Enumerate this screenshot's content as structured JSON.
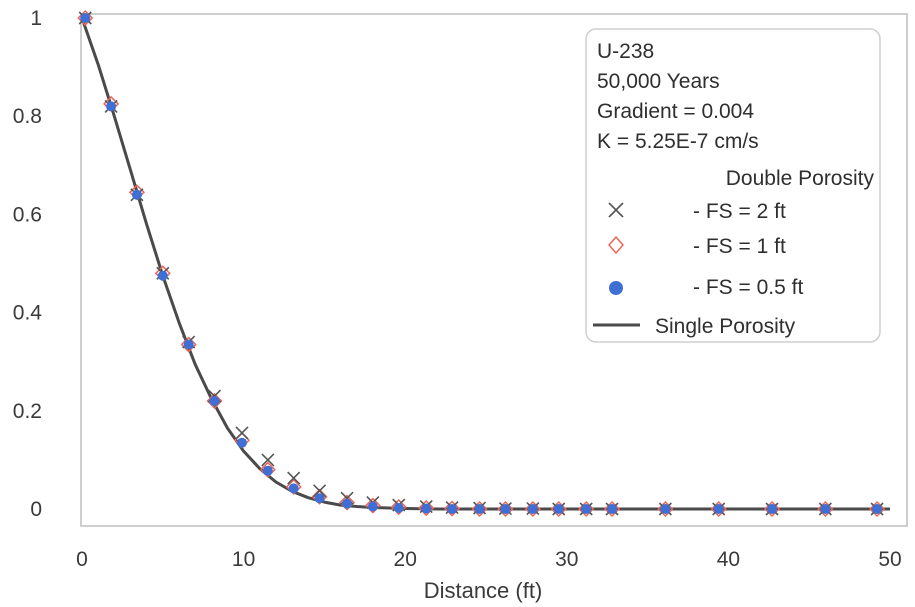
{
  "chart_data": {
    "type": "line",
    "xlabel": "Distance (ft)",
    "ylabel": "",
    "xlim": [
      0,
      50
    ],
    "ylim": [
      0,
      1
    ],
    "x_ticks": [
      "0",
      "10",
      "20",
      "30",
      "40",
      "50"
    ],
    "y_ticks": [
      "0",
      "0.2",
      "0.4",
      "0.6",
      "0.8",
      "1"
    ],
    "grid": false,
    "legend": {
      "placement": "top-right",
      "info_lines": [
        "U-238",
        "50,000 Years",
        "Gradient = 0.004",
        "K = 5.25E-7 cm/s"
      ],
      "group_title": "Double Porosity"
    },
    "series": [
      {
        "name": "- FS = 2 ft",
        "marker": "x",
        "color": "#555555",
        "x": [
          0.2,
          1.8,
          3.4,
          5.0,
          6.6,
          8.2,
          9.9,
          11.5,
          13.1,
          14.7,
          16.4,
          18.0,
          19.6,
          21.3,
          22.9,
          24.6,
          26.2,
          27.9,
          29.5,
          31.2,
          32.8,
          36.1,
          39.4,
          42.7,
          46.0,
          49.2
        ],
        "values": [
          1.0,
          0.82,
          0.64,
          0.48,
          0.34,
          0.23,
          0.155,
          0.1,
          0.063,
          0.037,
          0.022,
          0.013,
          0.008,
          0.005,
          0.003,
          0.002,
          0.001,
          0.001,
          0.0,
          0.0,
          0.0,
          0.0,
          0.0,
          0.0,
          0.0,
          0.0
        ]
      },
      {
        "name": "- FS = 1 ft",
        "marker": "diamond",
        "color": "#e8665a",
        "x": [
          0.2,
          1.8,
          3.4,
          5.0,
          6.6,
          8.2,
          9.9,
          11.5,
          13.1,
          14.7,
          16.4,
          18.0,
          19.6,
          21.3,
          22.9,
          24.6,
          26.2,
          27.9,
          29.5,
          31.2,
          32.8,
          36.1,
          39.4,
          42.7,
          46.0,
          49.2
        ],
        "values": [
          1.0,
          0.825,
          0.645,
          0.48,
          0.335,
          0.22,
          0.14,
          0.08,
          0.045,
          0.025,
          0.013,
          0.007,
          0.004,
          0.002,
          0.001,
          0.0,
          0.0,
          0.0,
          0.0,
          0.0,
          0.0,
          0.0,
          0.0,
          0.0,
          0.0,
          0.0
        ]
      },
      {
        "name": "- FS = 0.5 ft",
        "marker": "circle",
        "color": "#3f6fd4",
        "x": [
          0.2,
          1.8,
          3.4,
          5.0,
          6.6,
          8.2,
          9.9,
          11.5,
          13.1,
          14.7,
          16.4,
          18.0,
          19.6,
          21.3,
          22.9,
          24.6,
          26.2,
          27.9,
          29.5,
          31.2,
          32.8,
          36.1,
          39.4,
          42.7,
          46.0,
          49.2
        ],
        "values": [
          1.0,
          0.82,
          0.64,
          0.475,
          0.335,
          0.22,
          0.135,
          0.078,
          0.042,
          0.022,
          0.011,
          0.005,
          0.002,
          0.001,
          0.0,
          0.0,
          0.0,
          0.0,
          0.0,
          0.0,
          0.0,
          0.0,
          0.0,
          0.0,
          0.0,
          0.0
        ]
      },
      {
        "name": "Single Porosity",
        "marker": "line",
        "color": "#4a4a4a",
        "x": [
          0,
          1,
          2,
          3,
          4,
          5,
          6,
          7,
          8,
          9,
          10,
          11,
          12,
          13,
          14,
          15,
          16,
          17,
          18,
          19,
          20,
          22,
          24,
          26,
          30,
          35,
          40,
          45,
          50
        ],
        "values": [
          1.0,
          0.905,
          0.8,
          0.69,
          0.58,
          0.475,
          0.38,
          0.295,
          0.225,
          0.165,
          0.118,
          0.082,
          0.055,
          0.036,
          0.023,
          0.014,
          0.008,
          0.005,
          0.003,
          0.002,
          0.001,
          0.0,
          0.0,
          0.0,
          0.0,
          0.0,
          0.0,
          0.0,
          0.0
        ]
      }
    ]
  }
}
